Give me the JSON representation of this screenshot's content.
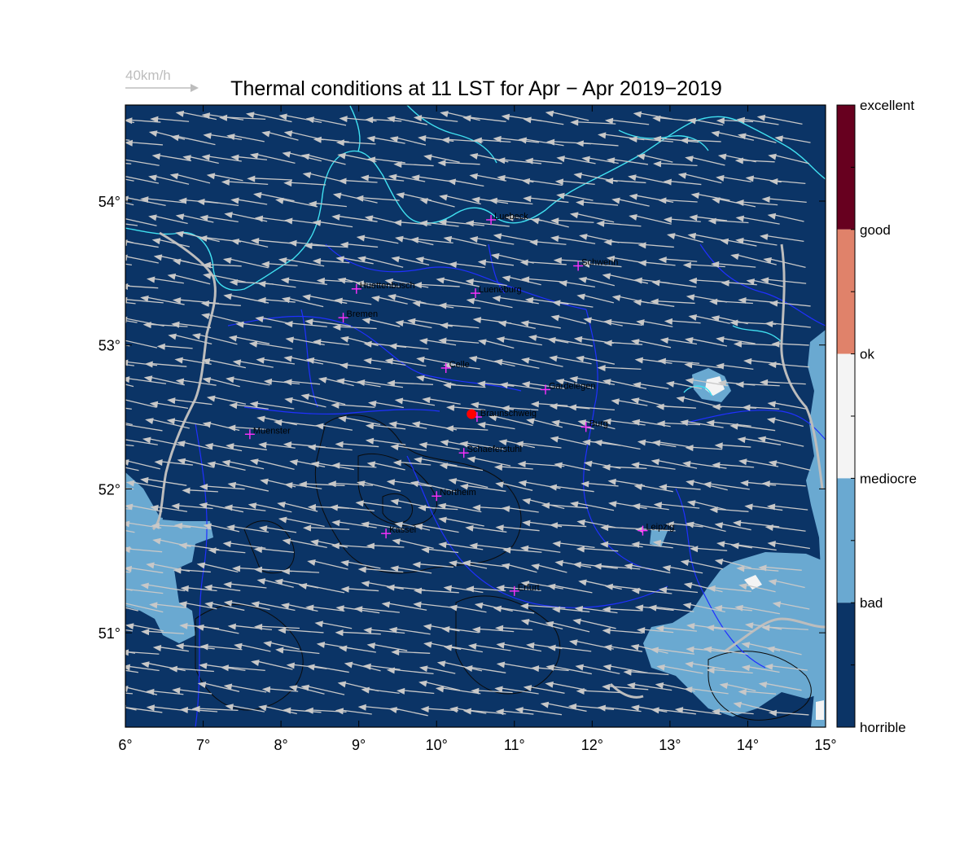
{
  "title": "Thermal conditions at 11 LST for Apr − Apr  2019−2019",
  "wind_scale_label": "40km/h",
  "map": {
    "lon_range": [
      6,
      15
    ],
    "lat_range": [
      50.35,
      54.7
    ],
    "x_ticks": [
      "6°",
      "7°",
      "8°",
      "9°",
      "10°",
      "11°",
      "12°",
      "13°",
      "14°",
      "15°"
    ],
    "y_ticks": [
      {
        "lat": 54,
        "label": "54°"
      },
      {
        "lat": 53,
        "label": "53°"
      },
      {
        "lat": 52,
        "label": "52°"
      },
      {
        "lat": 51,
        "label": "51°"
      }
    ],
    "predominant_wind": "east"
  },
  "colorbar": {
    "classes": [
      {
        "label": "excellent",
        "color": "#67001f"
      },
      {
        "label": "good",
        "color": "#e0826a"
      },
      {
        "label": "ok",
        "color": "#f4f4f4"
      },
      {
        "label": "mediocre",
        "color": "#6aa9d1"
      },
      {
        "label": "bad",
        "color": "#0b3466"
      },
      {
        "label": "horrible",
        "color": "#0b3466"
      }
    ]
  },
  "colors": {
    "background_class": "#0b3466",
    "bad_area": "#6aa9d1",
    "coastline": "#40e0f0",
    "borders": "#2030ff",
    "rivers_roads": "#bdbdbd",
    "wind_arrows": "#c8c8c8",
    "city_marker": "#ff30ff",
    "launch_site": "#ff0000"
  },
  "cities": [
    {
      "name": "Luebeck",
      "lon": 10.7,
      "lat": 53.87
    },
    {
      "name": "Schwerin",
      "lon": 11.82,
      "lat": 53.55
    },
    {
      "name": "Huettenbusch",
      "lon": 8.97,
      "lat": 53.39
    },
    {
      "name": "Lueneburg",
      "lon": 10.5,
      "lat": 53.36
    },
    {
      "name": "Bremen",
      "lon": 8.8,
      "lat": 53.19
    },
    {
      "name": "Celle",
      "lon": 10.12,
      "lat": 52.84
    },
    {
      "name": "Gardelegen",
      "lon": 11.4,
      "lat": 52.69
    },
    {
      "name": "Braunschweig",
      "lon": 10.52,
      "lat": 52.5
    },
    {
      "name": "Burg",
      "lon": 11.92,
      "lat": 52.43
    },
    {
      "name": "Muenster",
      "lon": 7.6,
      "lat": 52.38
    },
    {
      "name": "Schaeferstuhl",
      "lon": 10.35,
      "lat": 52.25
    },
    {
      "name": "Northeim",
      "lon": 10.0,
      "lat": 51.95
    },
    {
      "name": "Kassel",
      "lon": 9.35,
      "lat": 51.69
    },
    {
      "name": "Leipzig",
      "lon": 12.65,
      "lat": 51.71
    },
    {
      "name": "Erfurt",
      "lon": 11.0,
      "lat": 51.29
    }
  ],
  "launch_site": {
    "name": "Braunschweig",
    "lon": 10.45,
    "lat": 52.52
  }
}
